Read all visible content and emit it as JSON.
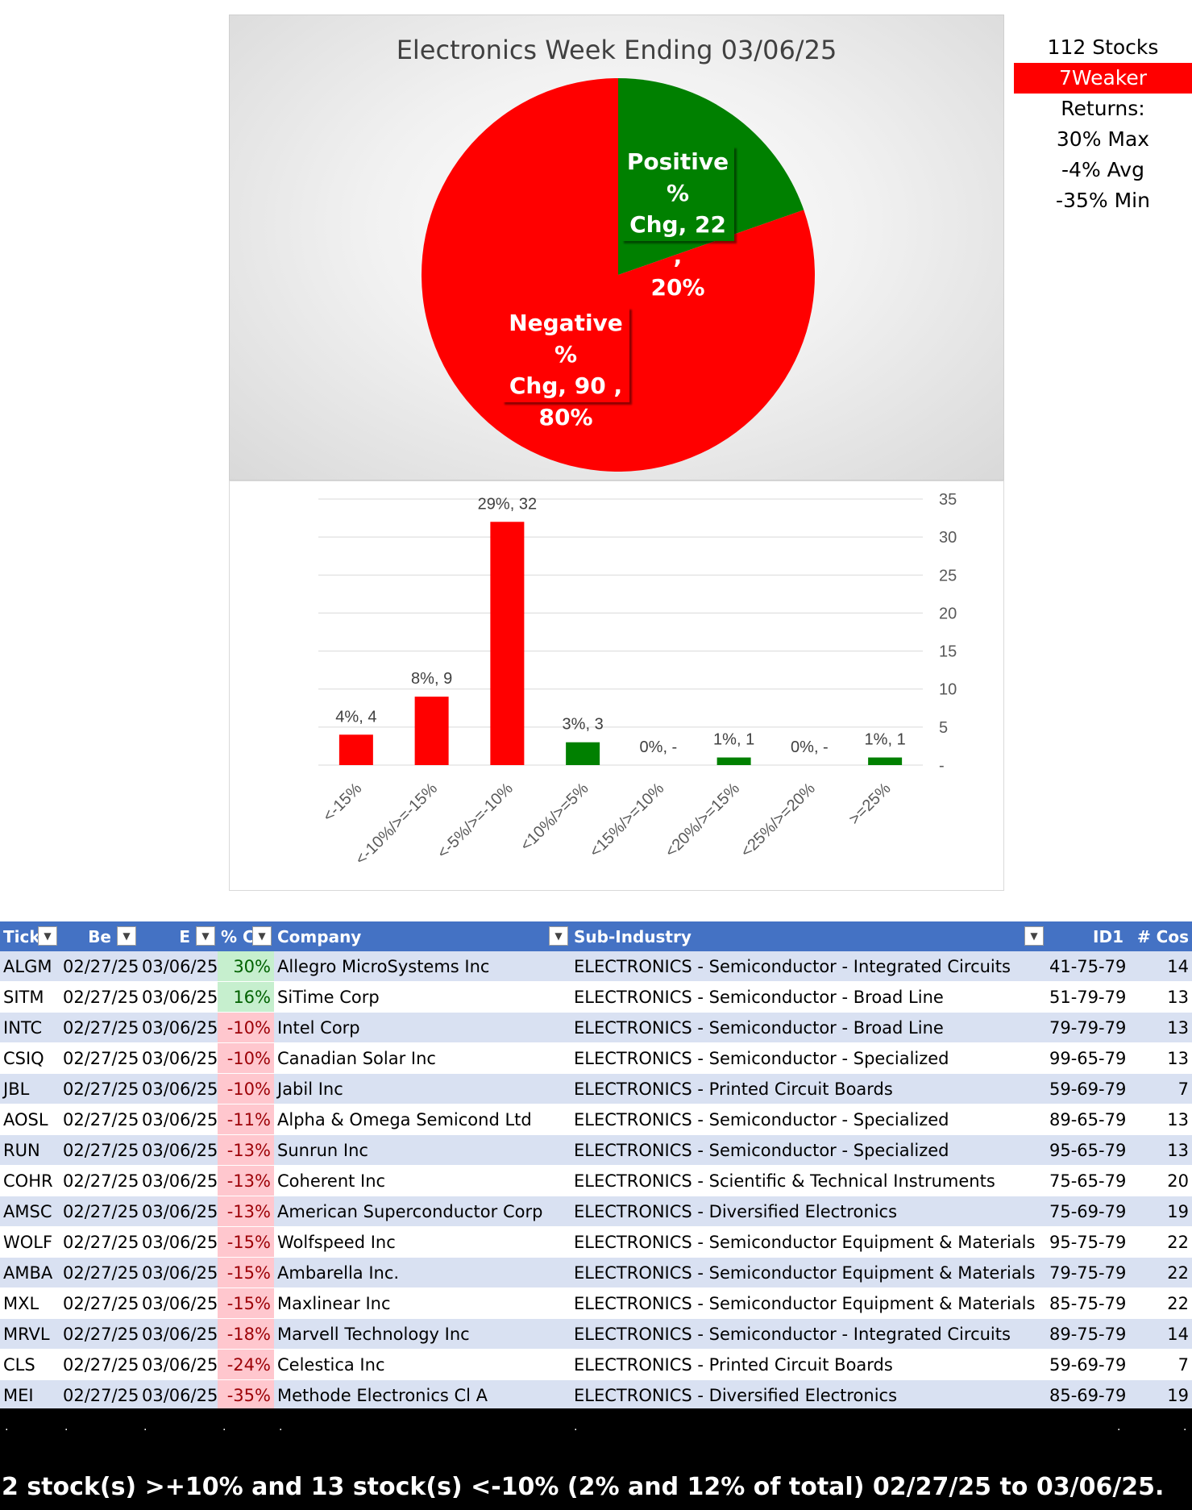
{
  "chart_data": [
    {
      "type": "pie",
      "title": "Electronics Week Ending 03/06/25",
      "slices": [
        {
          "label": "Positive % Chg",
          "value": 22,
          "percent": "20%",
          "color": "#008000"
        },
        {
          "label": "Negative % Chg",
          "value": 90,
          "percent": "80%",
          "color": "#ff0000"
        }
      ]
    },
    {
      "type": "bar",
      "categories": [
        "<-15%",
        "<-10%/>=-15%",
        "<-5%/>=-10%",
        "<10%/>=5%",
        "<15%/>=10%",
        "<20%/>=15%",
        "<25%/>=20%",
        ">=25%"
      ],
      "values": [
        4,
        9,
        32,
        3,
        0,
        1,
        0,
        1
      ],
      "data_labels": [
        "4%,  4",
        "8%,  9",
        "29%,  32",
        "3%,  3",
        "0%,  -",
        "1%,  1",
        "0%,  -",
        "1%,  1"
      ],
      "colors": [
        "#ff0000",
        "#ff0000",
        "#ff0000",
        "#008000",
        "#008000",
        "#008000",
        "#008000",
        "#008000"
      ],
      "ylim": [
        0,
        35
      ],
      "yticks": [
        "-",
        "5",
        "10",
        "15",
        "20",
        "25",
        "30",
        "35"
      ],
      "grid": true,
      "y_axis_side": "right"
    }
  ],
  "stats": {
    "stocks": "112 Stocks",
    "weaker": "7Weaker",
    "returns_label": "Returns:",
    "max": "30% Max",
    "avg": "-4% Avg",
    "min": "-35% Min"
  },
  "table": {
    "headers": [
      "Tick",
      "Be",
      "E",
      "% C",
      "Company",
      "Sub-Industry",
      "ID1",
      "# Cos"
    ],
    "rows": [
      {
        "ticker": "ALGM",
        "begin": "02/27/25",
        "end": "03/06/25",
        "pct": "30%",
        "sign": "pos",
        "company": "Allegro MicroSystems Inc",
        "sub": "ELECTRONICS - Semiconductor - Integrated Circuits",
        "id1": "41-75-79",
        "cos": "14"
      },
      {
        "ticker": "SITM",
        "begin": "02/27/25",
        "end": "03/06/25",
        "pct": "16%",
        "sign": "pos",
        "company": "SiTime Corp",
        "sub": "ELECTRONICS - Semiconductor - Broad Line",
        "id1": "51-79-79",
        "cos": "13"
      },
      {
        "ticker": "INTC",
        "begin": "02/27/25",
        "end": "03/06/25",
        "pct": "-10%",
        "sign": "neg",
        "company": "Intel Corp",
        "sub": "ELECTRONICS - Semiconductor - Broad Line",
        "id1": "79-79-79",
        "cos": "13"
      },
      {
        "ticker": "CSIQ",
        "begin": "02/27/25",
        "end": "03/06/25",
        "pct": "-10%",
        "sign": "neg",
        "company": "Canadian Solar Inc",
        "sub": "ELECTRONICS - Semiconductor - Specialized",
        "id1": "99-65-79",
        "cos": "13"
      },
      {
        "ticker": "JBL",
        "begin": "02/27/25",
        "end": "03/06/25",
        "pct": "-10%",
        "sign": "neg",
        "company": "Jabil Inc",
        "sub": "ELECTRONICS - Printed Circuit Boards",
        "id1": "59-69-79",
        "cos": "7"
      },
      {
        "ticker": "AOSL",
        "begin": "02/27/25",
        "end": "03/06/25",
        "pct": "-11%",
        "sign": "neg",
        "company": "Alpha & Omega Semicond Ltd",
        "sub": "ELECTRONICS - Semiconductor - Specialized",
        "id1": "89-65-79",
        "cos": "13"
      },
      {
        "ticker": "RUN",
        "begin": "02/27/25",
        "end": "03/06/25",
        "pct": "-13%",
        "sign": "neg",
        "company": "Sunrun Inc",
        "sub": "ELECTRONICS - Semiconductor - Specialized",
        "id1": "95-65-79",
        "cos": "13"
      },
      {
        "ticker": "COHR",
        "begin": "02/27/25",
        "end": "03/06/25",
        "pct": "-13%",
        "sign": "neg",
        "company": "Coherent Inc",
        "sub": "ELECTRONICS - Scientific & Technical Instruments",
        "id1": "75-65-79",
        "cos": "20"
      },
      {
        "ticker": "AMSC",
        "begin": "02/27/25",
        "end": "03/06/25",
        "pct": "-13%",
        "sign": "neg",
        "company": "American Superconductor Corp",
        "sub": "ELECTRONICS - Diversified Electronics",
        "id1": "75-69-79",
        "cos": "19"
      },
      {
        "ticker": "WOLF",
        "begin": "02/27/25",
        "end": "03/06/25",
        "pct": "-15%",
        "sign": "neg",
        "company": "Wolfspeed Inc",
        "sub": "ELECTRONICS - Semiconductor Equipment & Materials",
        "id1": "95-75-79",
        "cos": "22"
      },
      {
        "ticker": "AMBA",
        "begin": "02/27/25",
        "end": "03/06/25",
        "pct": "-15%",
        "sign": "neg",
        "company": "Ambarella Inc.",
        "sub": "ELECTRONICS - Semiconductor Equipment & Materials",
        "id1": "79-75-79",
        "cos": "22"
      },
      {
        "ticker": "MXL",
        "begin": "02/27/25",
        "end": "03/06/25",
        "pct": "-15%",
        "sign": "neg",
        "company": "Maxlinear Inc",
        "sub": "ELECTRONICS - Semiconductor Equipment & Materials",
        "id1": "85-75-79",
        "cos": "22"
      },
      {
        "ticker": "MRVL",
        "begin": "02/27/25",
        "end": "03/06/25",
        "pct": "-18%",
        "sign": "neg",
        "company": "Marvell Technology Inc",
        "sub": "ELECTRONICS - Semiconductor - Integrated Circuits",
        "id1": "89-75-79",
        "cos": "14"
      },
      {
        "ticker": "CLS",
        "begin": "02/27/25",
        "end": "03/06/25",
        "pct": "-24%",
        "sign": "neg",
        "company": "Celestica Inc",
        "sub": "ELECTRONICS - Printed Circuit Boards",
        "id1": "59-69-79",
        "cos": "7"
      },
      {
        "ticker": "MEI",
        "begin": "02/27/25",
        "end": "03/06/25",
        "pct": "-35%",
        "sign": "neg",
        "company": "Methode Electronics Cl A",
        "sub": "ELECTRONICS - Diversified Electronics",
        "id1": "85-69-79",
        "cos": "19"
      }
    ]
  },
  "footer": {
    "dots": [
      ".",
      ".",
      ".",
      ".",
      ".",
      ".",
      ".",
      "."
    ],
    "summary": "2 stock(s) >+10% and 13 stock(s) <-10% (2% and 12% of total) 02/27/25 to 03/06/25."
  },
  "colors": {
    "header_blue": "#4472c4",
    "band_blue": "#d9e1f2",
    "positive_green": "#008000",
    "negative_red": "#ff0000"
  }
}
